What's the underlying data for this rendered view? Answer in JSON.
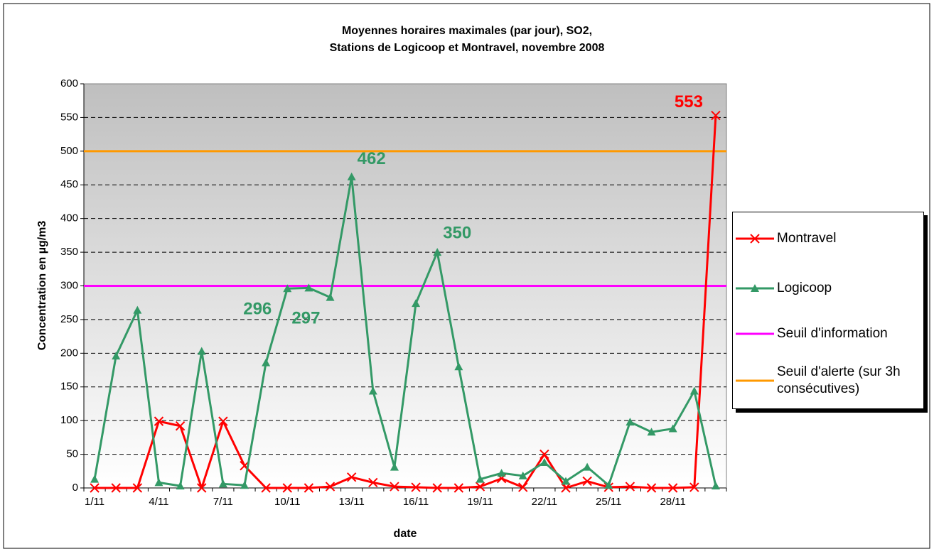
{
  "chart_data": {
    "type": "line",
    "title": "Moyennes horaires maximales (par jour), SO2,\nStations de Logicoop et Montravel, novembre 2008",
    "x_label": "date",
    "y_label": "Concentration en µg/m3",
    "categories": [
      "1/11",
      null,
      null,
      "4/11",
      null,
      null,
      "7/11",
      null,
      null,
      "10/11",
      null,
      null,
      "13/11",
      null,
      null,
      "16/11",
      null,
      null,
      "19/11",
      null,
      null,
      "22/11",
      null,
      null,
      "25/11",
      null,
      null,
      "28/11",
      null,
      null
    ],
    "ylim": [
      0,
      600
    ],
    "yticks": [
      0,
      50,
      100,
      150,
      200,
      250,
      300,
      350,
      400,
      450,
      500,
      550,
      600
    ],
    "grid": true,
    "legend": "right",
    "series": [
      {
        "name": "Montravel",
        "color": "#ff0000",
        "marker": "x",
        "values": [
          0,
          0,
          0,
          99,
          92,
          0,
          99,
          33,
          0,
          0,
          0,
          2,
          16,
          8,
          2,
          1,
          0,
          0,
          2,
          14,
          1,
          50,
          0,
          10,
          1,
          2,
          0,
          0,
          1,
          553
        ],
        "value_labels": [
          null,
          null,
          null,
          null,
          null,
          null,
          null,
          null,
          null,
          null,
          null,
          null,
          null,
          null,
          null,
          null,
          null,
          null,
          null,
          null,
          null,
          null,
          null,
          null,
          null,
          null,
          null,
          null,
          null,
          "553"
        ]
      },
      {
        "name": "Logicoop",
        "color": "#339966",
        "marker": "triangle",
        "values": [
          13,
          196,
          264,
          8,
          3,
          203,
          6,
          4,
          186,
          296,
          297,
          283,
          462,
          144,
          31,
          274,
          350,
          180,
          13,
          22,
          18,
          38,
          10,
          31,
          4,
          98,
          83,
          88,
          144,
          3
        ],
        "value_labels": [
          null,
          null,
          null,
          null,
          null,
          null,
          null,
          null,
          null,
          "296",
          "297",
          null,
          "462",
          null,
          null,
          null,
          "350",
          null,
          null,
          null,
          null,
          null,
          null,
          null,
          null,
          null,
          null,
          null,
          null,
          null
        ]
      }
    ],
    "thresholds": [
      {
        "name": "Seuil d'information",
        "color": "#ff00ff",
        "value": 300
      },
      {
        "name": "Seuil d'alerte (sur 3h consécutives)",
        "color": "#ff9900",
        "value": 500
      }
    ]
  }
}
